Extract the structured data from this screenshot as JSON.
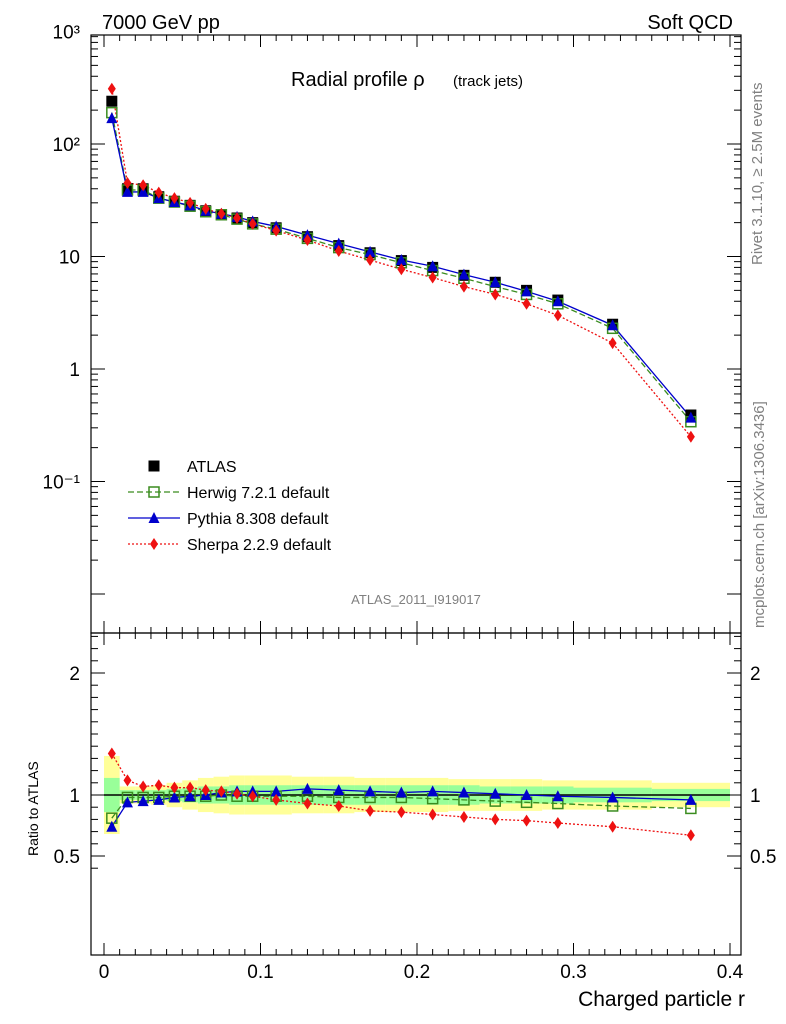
{
  "header": {
    "left": "7000 GeV pp",
    "right": "Soft QCD"
  },
  "side": {
    "rivet": "Rivet 3.1.10, ≥ 2.5M events",
    "mcplots": "mcplots.cern.ch [arXiv:1306.3436]"
  },
  "title": {
    "main": "Radial profile ρ",
    "sub": "(track jets)"
  },
  "analysis_id": "ATLAS_2011_I919017",
  "xlabel": "Charged particle r",
  "ratio_ylabel": "Ratio to ATLAS",
  "colors": {
    "data": "#000000",
    "herwig": "#3a8c1f",
    "pythia": "#0000cc",
    "sherpa": "#ee1111",
    "band_inner": "#99ff99",
    "band_outer": "#ffff99"
  },
  "chart_data": [
    {
      "type": "scatter",
      "panel": "main",
      "yscale": "log",
      "xlim": [
        -0.01,
        0.4
      ],
      "ylim": [
        0.05,
        5000
      ],
      "xticks": [
        0,
        0.1,
        0.2,
        0.3,
        0.4
      ],
      "ytick_labels": [
        "10⁻¹",
        "1",
        "10",
        "10²",
        "10³"
      ],
      "x": [
        0.005,
        0.015,
        0.025,
        0.035,
        0.045,
        0.055,
        0.065,
        0.075,
        0.085,
        0.095,
        0.11,
        0.13,
        0.15,
        0.17,
        0.19,
        0.21,
        0.23,
        0.25,
        0.27,
        0.29,
        0.325,
        0.375
      ],
      "series": [
        {
          "name": "ATLAS",
          "marker": "square-filled",
          "values": [
            240,
            40,
            40,
            34,
            31,
            28.5,
            25.5,
            23.5,
            22,
            20,
            18,
            15,
            12.5,
            10.8,
            9.2,
            8,
            6.8,
            5.9,
            5,
            4.1,
            2.5,
            0.39
          ]
        },
        {
          "name": "Herwig 7.2.1 default",
          "marker": "square-open",
          "line": "dashed",
          "values": [
            190,
            39,
            39,
            33,
            30.5,
            28,
            25,
            23.5,
            21.5,
            19.5,
            17.5,
            14.5,
            12,
            10.4,
            8.8,
            7.5,
            6.4,
            5.4,
            4.6,
            3.8,
            2.3,
            0.34
          ]
        },
        {
          "name": "Pythia 8.308 default",
          "marker": "triangle-filled",
          "line": "solid",
          "values": [
            170,
            37.5,
            37.5,
            33,
            30.5,
            28.5,
            25.5,
            24,
            22.5,
            20.5,
            18.5,
            15.5,
            13,
            11,
            9.3,
            8.2,
            6.9,
            5.9,
            4.9,
            4,
            2.45,
            0.37
          ]
        },
        {
          "name": "Sherpa 2.2.9 default",
          "marker": "diamond-filled",
          "line": "dotted",
          "values": [
            310,
            45,
            43,
            37,
            33,
            30,
            26.5,
            24,
            22,
            19.5,
            17,
            14,
            11.2,
            9.3,
            7.7,
            6.5,
            5.4,
            4.6,
            3.8,
            3,
            1.7,
            0.25
          ]
        }
      ]
    },
    {
      "type": "scatter",
      "panel": "ratio",
      "xlim": [
        -0.01,
        0.4
      ],
      "ylim": [
        0.33,
        2.4
      ],
      "ytick_labels": [
        "0.5",
        "1",
        "2"
      ],
      "x": [
        0.005,
        0.015,
        0.025,
        0.035,
        0.045,
        0.055,
        0.065,
        0.075,
        0.085,
        0.095,
        0.11,
        0.13,
        0.15,
        0.17,
        0.19,
        0.21,
        0.23,
        0.25,
        0.27,
        0.29,
        0.325,
        0.375
      ],
      "x_edges": [
        0,
        0.01,
        0.02,
        0.03,
        0.04,
        0.05,
        0.06,
        0.07,
        0.08,
        0.09,
        0.1,
        0.12,
        0.14,
        0.16,
        0.18,
        0.2,
        0.22,
        0.24,
        0.26,
        0.28,
        0.3,
        0.35,
        0.4
      ],
      "band_inner_low": [
        0.86,
        0.96,
        0.96,
        0.96,
        0.95,
        0.94,
        0.93,
        0.93,
        0.92,
        0.92,
        0.92,
        0.92,
        0.92,
        0.92,
        0.92,
        0.92,
        0.92,
        0.93,
        0.93,
        0.93,
        0.94,
        0.95
      ],
      "band_inner_high": [
        1.14,
        1.04,
        1.04,
        1.04,
        1.05,
        1.06,
        1.07,
        1.07,
        1.08,
        1.08,
        1.08,
        1.08,
        1.08,
        1.08,
        1.08,
        1.08,
        1.08,
        1.07,
        1.07,
        1.07,
        1.06,
        1.05
      ],
      "band_outer_low": [
        0.68,
        0.93,
        0.93,
        0.92,
        0.9,
        0.88,
        0.86,
        0.85,
        0.84,
        0.84,
        0.84,
        0.85,
        0.85,
        0.86,
        0.86,
        0.86,
        0.87,
        0.87,
        0.87,
        0.88,
        0.88,
        0.9
      ],
      "band_outer_high": [
        1.32,
        1.07,
        1.07,
        1.08,
        1.1,
        1.12,
        1.14,
        1.15,
        1.16,
        1.16,
        1.16,
        1.15,
        1.15,
        1.14,
        1.14,
        1.14,
        1.13,
        1.13,
        1.13,
        1.12,
        1.12,
        1.1
      ],
      "series": [
        {
          "name": "Herwig 7.2.1 default",
          "values": [
            0.81,
            0.98,
            0.98,
            0.98,
            0.99,
            0.99,
            0.99,
            1.0,
            0.99,
            0.99,
            0.99,
            0.99,
            0.98,
            0.98,
            0.98,
            0.97,
            0.96,
            0.95,
            0.94,
            0.93,
            0.91,
            0.89
          ]
        },
        {
          "name": "Pythia 8.308 default",
          "values": [
            0.74,
            0.94,
            0.95,
            0.96,
            0.98,
            0.99,
            1.0,
            1.02,
            1.03,
            1.03,
            1.03,
            1.05,
            1.04,
            1.03,
            1.02,
            1.03,
            1.02,
            1.01,
            1.0,
            0.99,
            0.98,
            0.96
          ]
        },
        {
          "name": "Sherpa 2.2.9 default",
          "values": [
            1.34,
            1.12,
            1.07,
            1.08,
            1.06,
            1.06,
            1.04,
            1.03,
            1.01,
            0.99,
            0.96,
            0.93,
            0.91,
            0.87,
            0.86,
            0.84,
            0.82,
            0.8,
            0.79,
            0.77,
            0.74,
            0.67
          ]
        }
      ]
    }
  ]
}
